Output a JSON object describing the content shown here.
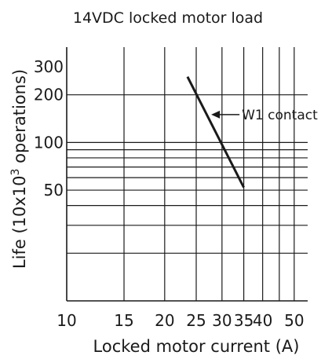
{
  "chart_data": {
    "type": "line",
    "title": "14VDC locked motor load",
    "xlabel": "Locked motor current (A)",
    "ylabel": "Life (10x10",
    "ylabel_superscript": "3",
    "ylabel_suffix": " operations)",
    "x_scale": "log",
    "y_scale": "log",
    "xlim": [
      10,
      55
    ],
    "ylim": [
      10,
      400
    ],
    "x_ticks": [
      {
        "value": 10,
        "label": "10"
      },
      {
        "value": 15,
        "label": "15"
      },
      {
        "value": 20,
        "label": "20"
      },
      {
        "value": 25,
        "label": "25"
      },
      {
        "value": 30,
        "label": "30"
      },
      {
        "value": 35,
        "label": "35"
      },
      {
        "value": 40,
        "label": "40"
      },
      {
        "value": 50,
        "label": "50"
      }
    ],
    "x_gridlines": [
      10,
      15,
      20,
      25,
      30,
      35,
      40,
      45,
      50
    ],
    "y_ticks": [
      {
        "value": 50,
        "label": "50"
      },
      {
        "value": 100,
        "label": "100"
      },
      {
        "value": 200,
        "label": "200"
      },
      {
        "value": 300,
        "label": "300"
      }
    ],
    "y_gridlines": [
      20,
      30,
      40,
      50,
      60,
      70,
      80,
      90,
      100,
      200
    ],
    "grid": true,
    "series": [
      {
        "name": "W1 contact",
        "x": [
          23.5,
          35
        ],
        "y": [
          260,
          52
        ],
        "color": "#1a1a1a"
      }
    ],
    "annotations": [
      {
        "text": "W1 contact",
        "arrow_to": {
          "x": 27.8,
          "y": 150
        }
      }
    ]
  }
}
